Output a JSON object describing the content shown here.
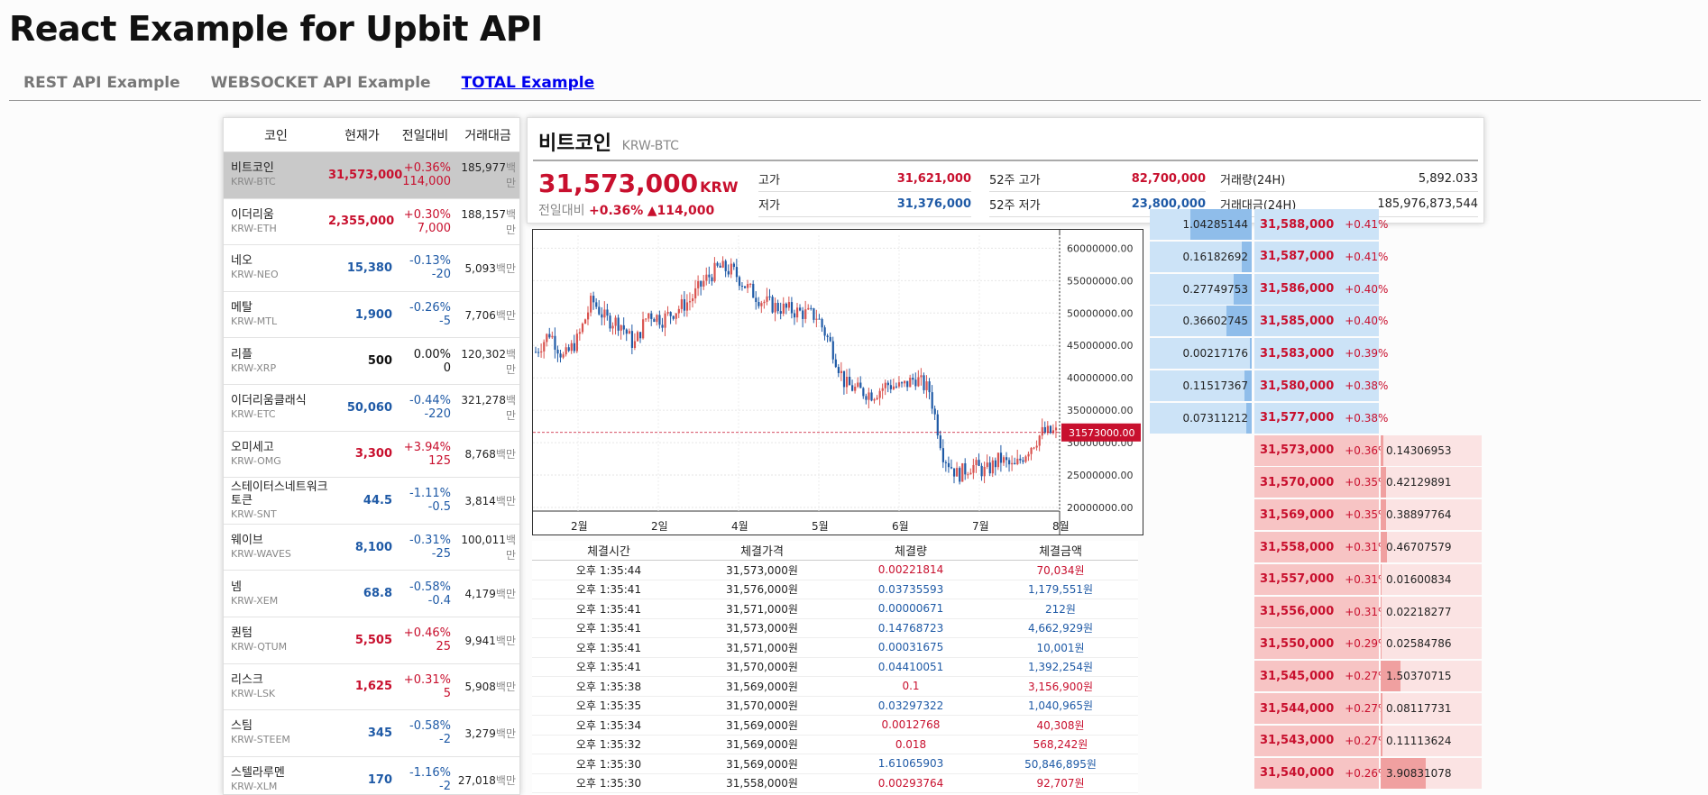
{
  "app_title": "React Example for Upbit API",
  "nav": {
    "tabs": [
      {
        "label": "REST API Example",
        "active": false
      },
      {
        "label": "WEBSOCKET API Example",
        "active": false
      },
      {
        "label": "TOTAL Example",
        "active": true
      }
    ]
  },
  "coin_list": {
    "headers": [
      "코인",
      "현재가",
      "전일대비",
      "거래대금"
    ],
    "volume_unit": "백만",
    "rows": [
      {
        "name": "비트코인",
        "market": "KRW-BTC",
        "price": "31,573,000",
        "rate": "+0.36%",
        "diff": "114,000",
        "volume": "185,977",
        "dir": "up",
        "selected": true
      },
      {
        "name": "이더리움",
        "market": "KRW-ETH",
        "price": "2,355,000",
        "rate": "+0.30%",
        "diff": "7,000",
        "volume": "188,157",
        "dir": "up"
      },
      {
        "name": "네오",
        "market": "KRW-NEO",
        "price": "15,380",
        "rate": "-0.13%",
        "diff": "-20",
        "volume": "5,093",
        "dir": "down"
      },
      {
        "name": "메탈",
        "market": "KRW-MTL",
        "price": "1,900",
        "rate": "-0.26%",
        "diff": "-5",
        "volume": "7,706",
        "dir": "down"
      },
      {
        "name": "리플",
        "market": "KRW-XRP",
        "price": "500",
        "rate": "0.00%",
        "diff": "0",
        "volume": "120,302",
        "dir": "even"
      },
      {
        "name": "이더리움클래식",
        "market": "KRW-ETC",
        "price": "50,060",
        "rate": "-0.44%",
        "diff": "-220",
        "volume": "321,278",
        "dir": "down"
      },
      {
        "name": "오미세고",
        "market": "KRW-OMG",
        "price": "3,300",
        "rate": "+3.94%",
        "diff": "125",
        "volume": "8,768",
        "dir": "up"
      },
      {
        "name": "스테이터스네트워크토큰",
        "market": "KRW-SNT",
        "price": "44.5",
        "rate": "-1.11%",
        "diff": "-0.5",
        "volume": "3,814",
        "dir": "down"
      },
      {
        "name": "웨이브",
        "market": "KRW-WAVES",
        "price": "8,100",
        "rate": "-0.31%",
        "diff": "-25",
        "volume": "100,011",
        "dir": "down"
      },
      {
        "name": "넴",
        "market": "KRW-XEM",
        "price": "68.8",
        "rate": "-0.58%",
        "diff": "-0.4",
        "volume": "4,179",
        "dir": "down"
      },
      {
        "name": "퀀텀",
        "market": "KRW-QTUM",
        "price": "5,505",
        "rate": "+0.46%",
        "diff": "25",
        "volume": "9,941",
        "dir": "up"
      },
      {
        "name": "리스크",
        "market": "KRW-LSK",
        "price": "1,625",
        "rate": "+0.31%",
        "diff": "5",
        "volume": "5,908",
        "dir": "up"
      },
      {
        "name": "스팀",
        "market": "KRW-STEEM",
        "price": "345",
        "rate": "-0.58%",
        "diff": "-2",
        "volume": "3,279",
        "dir": "down"
      },
      {
        "name": "스텔라루멘",
        "market": "KRW-XLM",
        "price": "170",
        "rate": "-1.16%",
        "diff": "-2",
        "volume": "27,018",
        "dir": "down"
      }
    ]
  },
  "detail": {
    "name": "비트코인",
    "market": "KRW-BTC",
    "price": "31,573,000",
    "currency": "KRW",
    "change_label": "전일대비",
    "change_rate": "+0.36%",
    "change_price": "▲114,000",
    "stats": [
      {
        "label": "고가",
        "value": "31,621,000",
        "dir": "up"
      },
      {
        "label": "저가",
        "value": "31,376,000",
        "dir": "down"
      },
      {
        "label": "52주 고가",
        "value": "82,700,000",
        "dir": "up"
      },
      {
        "label": "52주 저가",
        "value": "23,800,000",
        "dir": "down"
      },
      {
        "label": "거래량(24H)",
        "value": "5,892.033",
        "dir": "even"
      },
      {
        "label": "거래대금(24H)",
        "value": "185,976,873,544",
        "dir": "even"
      }
    ]
  },
  "chart_data": {
    "type": "candlestick",
    "y_ticks": [
      "60000000.00",
      "55000000.00",
      "50000000.00",
      "45000000.00",
      "40000000.00",
      "35000000.00",
      "30000000.00",
      "25000000.00",
      "20000000.00"
    ],
    "x_ticks": [
      "2월",
      "2일",
      "4월",
      "5월",
      "6월",
      "7월",
      "8월"
    ],
    "ylim": [
      20000000,
      62000000
    ],
    "current_price_label": "31573000.00",
    "current_price": 31573000,
    "close_path": [
      44000000,
      47000000,
      43000000,
      46000000,
      52000000,
      49000000,
      48500000,
      45000000,
      50000000,
      49000000,
      50500000,
      52000000,
      55000000,
      57000000,
      56500000,
      54000000,
      52000000,
      51000000,
      50500000,
      50000000,
      49500000,
      45000000,
      39000000,
      38000000,
      37500000,
      39000000,
      38500000,
      40000000,
      38000000,
      28000000,
      25000000,
      26500000,
      25500000,
      27500000,
      26000000,
      29000000,
      31500000,
      31573000
    ]
  },
  "trades": {
    "headers": [
      "체결시간",
      "체결가격",
      "체결량",
      "체결금액"
    ],
    "rows": [
      {
        "time": "오후 1:35:44",
        "price": "31,573,000원",
        "qty": "0.00221814",
        "amount": "70,034원",
        "dir": "up"
      },
      {
        "time": "오후 1:35:41",
        "price": "31,576,000원",
        "qty": "0.03735593",
        "amount": "1,179,551원",
        "dir": "down"
      },
      {
        "time": "오후 1:35:41",
        "price": "31,571,000원",
        "qty": "0.00000671",
        "amount": "212원",
        "dir": "down"
      },
      {
        "time": "오후 1:35:41",
        "price": "31,573,000원",
        "qty": "0.14768723",
        "amount": "4,662,929원",
        "dir": "down"
      },
      {
        "time": "오후 1:35:41",
        "price": "31,571,000원",
        "qty": "0.00031675",
        "amount": "10,001원",
        "dir": "down"
      },
      {
        "time": "오후 1:35:41",
        "price": "31,570,000원",
        "qty": "0.04410051",
        "amount": "1,392,254원",
        "dir": "down"
      },
      {
        "time": "오후 1:35:38",
        "price": "31,569,000원",
        "qty": "0.1",
        "amount": "3,156,900원",
        "dir": "up"
      },
      {
        "time": "오후 1:35:35",
        "price": "31,570,000원",
        "qty": "0.03297322",
        "amount": "1,040,965원",
        "dir": "down"
      },
      {
        "time": "오후 1:35:34",
        "price": "31,569,000원",
        "qty": "0.0012768",
        "amount": "40,308원",
        "dir": "up"
      },
      {
        "time": "오후 1:35:32",
        "price": "31,569,000원",
        "qty": "0.018",
        "amount": "568,242원",
        "dir": "up"
      },
      {
        "time": "오후 1:35:30",
        "price": "31,569,000원",
        "qty": "1.61065903",
        "amount": "50,846,895원",
        "dir": "down"
      },
      {
        "time": "오후 1:35:30",
        "price": "31,558,000원",
        "qty": "0.00293764",
        "amount": "92,707원",
        "dir": "up"
      }
    ]
  },
  "orderbook": {
    "asks": [
      {
        "size": "1.04285144",
        "price": "31,588,000",
        "rate": "+0.41%",
        "fill": 0.6
      },
      {
        "size": "0.16182692",
        "price": "31,587,000",
        "rate": "+0.41%",
        "fill": 0.1
      },
      {
        "size": "0.27749753",
        "price": "31,586,000",
        "rate": "+0.40%",
        "fill": 0.18
      },
      {
        "size": "0.36602745",
        "price": "31,585,000",
        "rate": "+0.40%",
        "fill": 0.25
      },
      {
        "size": "0.00217176",
        "price": "31,583,000",
        "rate": "+0.39%",
        "fill": 0.02
      },
      {
        "size": "0.11517367",
        "price": "31,580,000",
        "rate": "+0.38%",
        "fill": 0.07
      },
      {
        "size": "0.07311212",
        "price": "31,577,000",
        "rate": "+0.38%",
        "fill": 0.05
      }
    ],
    "bids": [
      {
        "size": "0.14306953",
        "price": "31,573,000",
        "rate": "+0.36%",
        "fill": 0.03
      },
      {
        "size": "0.42129891",
        "price": "31,570,000",
        "rate": "+0.35%",
        "fill": 0.05
      },
      {
        "size": "0.38897764",
        "price": "31,569,000",
        "rate": "+0.35%",
        "fill": 0.05
      },
      {
        "size": "0.46707579",
        "price": "31,558,000",
        "rate": "+0.31%",
        "fill": 0.06
      },
      {
        "size": "0.01600834",
        "price": "31,557,000",
        "rate": "+0.31%",
        "fill": 0.01
      },
      {
        "size": "0.02218277",
        "price": "31,556,000",
        "rate": "+0.31%",
        "fill": 0.01
      },
      {
        "size": "0.02584786",
        "price": "31,550,000",
        "rate": "+0.29%",
        "fill": 0.01
      },
      {
        "size": "1.50370715",
        "price": "31,545,000",
        "rate": "+0.27%",
        "fill": 0.2
      },
      {
        "size": "0.08117731",
        "price": "31,544,000",
        "rate": "+0.27%",
        "fill": 0.02
      },
      {
        "size": "0.11113624",
        "price": "31,543,000",
        "rate": "+0.27%",
        "fill": 0.02
      },
      {
        "size": "3.90831078",
        "price": "31,540,000",
        "rate": "+0.26%",
        "fill": 0.45
      }
    ]
  },
  "colors": {
    "up": "#c8102e",
    "down": "#1f5aa6",
    "ask_bg": "#cce3f7",
    "bid_bg": "#f7c4c4"
  }
}
